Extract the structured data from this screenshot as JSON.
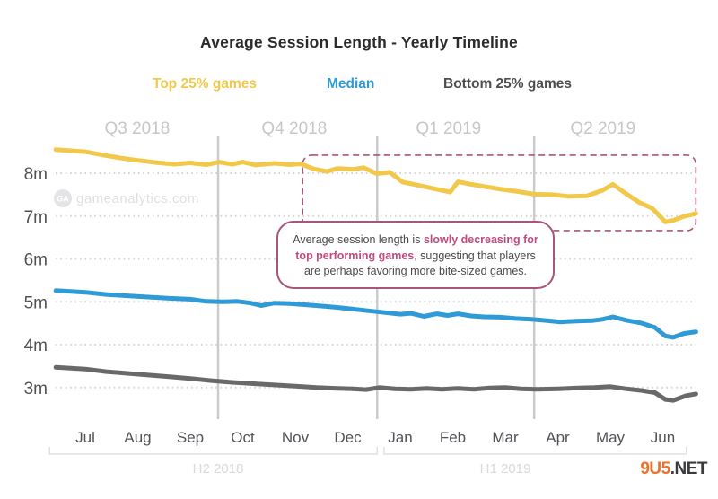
{
  "title": "Average Session Length - Yearly Timeline",
  "legend": [
    {
      "label": "Top 25% games",
      "color": "#f2c84b"
    },
    {
      "label": "Median",
      "color": "#2e9bd6"
    },
    {
      "label": "Bottom 25% games",
      "color": "#4c4d4f"
    }
  ],
  "watermark": {
    "icon_text": "GA",
    "text": "gameanalytics.com",
    "color": "#e0e0e2"
  },
  "site_watermark": {
    "prefix": "9U5",
    "suffix": ".NET",
    "prefix_color": "#e87228",
    "suffix_color": "#3b3b3d"
  },
  "annotation": {
    "plain1": "Average session length is ",
    "highlight": "slowly decreasing for top performing games",
    "plain2": ", suggesting that players are perhaps favoring more bite-sized games.",
    "border_color": "#a8557c",
    "highlight_color": "#c04b80"
  },
  "chart_data": {
    "type": "line",
    "title": "Average Session Length - Yearly Timeline",
    "x_unit": "month",
    "x_labels": [
      "Jul",
      "Aug",
      "Sep",
      "Oct",
      "Nov",
      "Dec",
      "Jan",
      "Feb",
      "Mar",
      "Apr",
      "May",
      "Jun"
    ],
    "y_unit": "minutes",
    "ylim": [
      2.3,
      8.9
    ],
    "grid": "horizontal-dotted",
    "y_ticks": [
      {
        "value": 8,
        "label": "8m"
      },
      {
        "value": 7,
        "label": "7m"
      },
      {
        "value": 6,
        "label": "6m"
      },
      {
        "value": 5,
        "label": "5m"
      },
      {
        "value": 4,
        "label": "4m"
      },
      {
        "value": 3,
        "label": "3m"
      }
    ],
    "quarter_labels": [
      {
        "label": "Q3 2018",
        "x": 0.99
      },
      {
        "label": "Q4 2018",
        "x": 3.98
      },
      {
        "label": "Q1 2019",
        "x": 6.92
      },
      {
        "label": "Q2 2019",
        "x": 9.86
      }
    ],
    "quarter_boundaries": [
      2.53,
      5.56,
      8.55
    ],
    "half_year_brackets": [
      {
        "label": "H2 2018",
        "x0": -0.68,
        "x1": 5.56,
        "label_x": 2.53
      },
      {
        "label": "H1 2019",
        "x0": 5.69,
        "x1": 11.45,
        "label_x": 8.0
      }
    ],
    "highlight_box": {
      "x0": 4.14,
      "x1": 11.63,
      "y_top": 8.42,
      "y_bottom": 6.66,
      "color": "#a8557c"
    },
    "series": [
      {
        "name": "Top 25% games",
        "color": "#f2c84b",
        "points": [
          [
            -0.56,
            8.55
          ],
          [
            0,
            8.5
          ],
          [
            0.35,
            8.42
          ],
          [
            0.7,
            8.35
          ],
          [
            1,
            8.3
          ],
          [
            1.35,
            8.25
          ],
          [
            1.7,
            8.21
          ],
          [
            2,
            8.24
          ],
          [
            2.3,
            8.2
          ],
          [
            2.55,
            8.26
          ],
          [
            2.8,
            8.21
          ],
          [
            3,
            8.26
          ],
          [
            3.25,
            8.19
          ],
          [
            3.6,
            8.23
          ],
          [
            3.9,
            8.2
          ],
          [
            4.1,
            8.22
          ],
          [
            4.35,
            8.1
          ],
          [
            4.6,
            8.04
          ],
          [
            4.8,
            8.11
          ],
          [
            5.1,
            8.09
          ],
          [
            5.3,
            8.13
          ],
          [
            5.55,
            7.99
          ],
          [
            5.8,
            8.02
          ],
          [
            6.05,
            7.79
          ],
          [
            6.3,
            7.73
          ],
          [
            6.6,
            7.65
          ],
          [
            6.95,
            7.56
          ],
          [
            7.1,
            7.8
          ],
          [
            7.35,
            7.74
          ],
          [
            7.65,
            7.68
          ],
          [
            7.95,
            7.62
          ],
          [
            8.25,
            7.57
          ],
          [
            8.55,
            7.51
          ],
          [
            8.9,
            7.5
          ],
          [
            9.2,
            7.46
          ],
          [
            9.55,
            7.47
          ],
          [
            9.85,
            7.6
          ],
          [
            10.05,
            7.74
          ],
          [
            10.3,
            7.52
          ],
          [
            10.55,
            7.32
          ],
          [
            10.8,
            7.18
          ],
          [
            11.05,
            6.86
          ],
          [
            11.2,
            6.9
          ],
          [
            11.4,
            6.99
          ],
          [
            11.63,
            7.06
          ]
        ]
      },
      {
        "name": "Median",
        "color": "#2e9bd6",
        "points": [
          [
            -0.56,
            5.26
          ],
          [
            0,
            5.22
          ],
          [
            0.4,
            5.17
          ],
          [
            0.8,
            5.14
          ],
          [
            1.2,
            5.11
          ],
          [
            1.6,
            5.08
          ],
          [
            2,
            5.06
          ],
          [
            2.3,
            5.01
          ],
          [
            2.6,
            5.0
          ],
          [
            2.9,
            5.01
          ],
          [
            3.15,
            4.97
          ],
          [
            3.35,
            4.91
          ],
          [
            3.6,
            4.97
          ],
          [
            3.9,
            4.96
          ],
          [
            4.2,
            4.93
          ],
          [
            4.5,
            4.9
          ],
          [
            4.8,
            4.87
          ],
          [
            5.1,
            4.83
          ],
          [
            5.4,
            4.79
          ],
          [
            5.7,
            4.75
          ],
          [
            6,
            4.71
          ],
          [
            6.2,
            4.73
          ],
          [
            6.45,
            4.66
          ],
          [
            6.7,
            4.72
          ],
          [
            6.9,
            4.68
          ],
          [
            7.1,
            4.72
          ],
          [
            7.35,
            4.67
          ],
          [
            7.6,
            4.65
          ],
          [
            7.9,
            4.64
          ],
          [
            8.2,
            4.61
          ],
          [
            8.5,
            4.59
          ],
          [
            8.8,
            4.56
          ],
          [
            9.05,
            4.53
          ],
          [
            9.35,
            4.55
          ],
          [
            9.65,
            4.56
          ],
          [
            9.85,
            4.59
          ],
          [
            10.05,
            4.65
          ],
          [
            10.3,
            4.57
          ],
          [
            10.6,
            4.5
          ],
          [
            10.85,
            4.4
          ],
          [
            11.05,
            4.2
          ],
          [
            11.2,
            4.17
          ],
          [
            11.4,
            4.26
          ],
          [
            11.63,
            4.3
          ]
        ]
      },
      {
        "name": "Bottom 25% games",
        "color": "#69696b",
        "points": [
          [
            -0.56,
            3.47
          ],
          [
            0,
            3.43
          ],
          [
            0.4,
            3.37
          ],
          [
            0.8,
            3.33
          ],
          [
            1.2,
            3.29
          ],
          [
            1.6,
            3.25
          ],
          [
            2,
            3.21
          ],
          [
            2.4,
            3.16
          ],
          [
            2.8,
            3.12
          ],
          [
            3.2,
            3.09
          ],
          [
            3.6,
            3.06
          ],
          [
            4,
            3.03
          ],
          [
            4.4,
            3.0
          ],
          [
            4.8,
            2.98
          ],
          [
            5.1,
            2.97
          ],
          [
            5.35,
            2.95
          ],
          [
            5.6,
            3.0
          ],
          [
            5.9,
            2.97
          ],
          [
            6.2,
            2.96
          ],
          [
            6.5,
            2.98
          ],
          [
            6.8,
            2.96
          ],
          [
            7.1,
            2.98
          ],
          [
            7.4,
            2.96
          ],
          [
            7.7,
            2.99
          ],
          [
            8,
            3.0
          ],
          [
            8.3,
            2.97
          ],
          [
            8.6,
            2.96
          ],
          [
            9,
            2.97
          ],
          [
            9.4,
            2.99
          ],
          [
            9.7,
            3.0
          ],
          [
            10,
            3.02
          ],
          [
            10.3,
            2.97
          ],
          [
            10.6,
            2.93
          ],
          [
            10.85,
            2.88
          ],
          [
            11.05,
            2.72
          ],
          [
            11.2,
            2.7
          ],
          [
            11.45,
            2.81
          ],
          [
            11.63,
            2.85
          ]
        ]
      }
    ]
  }
}
